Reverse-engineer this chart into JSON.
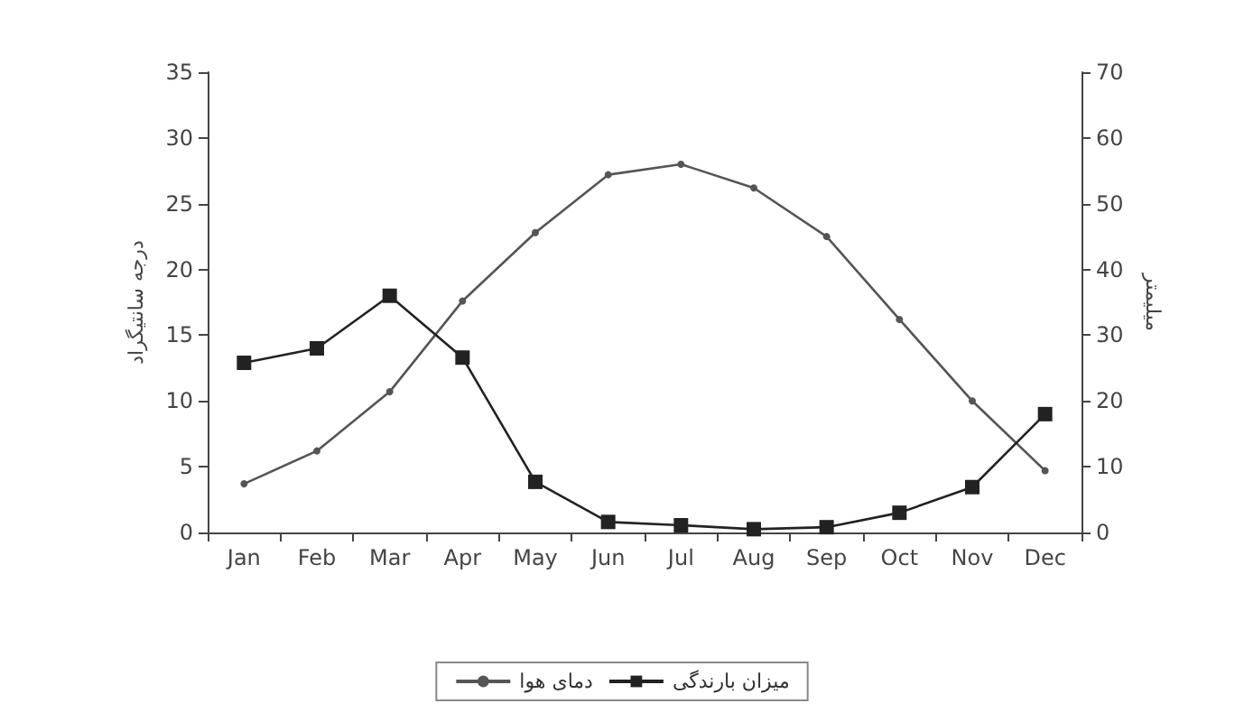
{
  "chart_data": {
    "type": "line",
    "ylabel": "درجه سانتیگراد",
    "y2label": "میلیمتر",
    "categories": [
      "Jan",
      "Feb",
      "Mar",
      "Apr",
      "May",
      "Jun",
      "Jul",
      "Aug",
      "Sep",
      "Oct",
      "Nov",
      "Dec"
    ],
    "series": [
      {
        "name": "دمای هوا",
        "color": "#555555",
        "marker": "circle",
        "values": [
          3.7,
          6.2,
          10.7,
          17.6,
          22.8,
          27.2,
          28,
          26.2,
          22.5,
          16.2,
          10,
          4.7
        ]
      },
      {
        "name": "میزان بارندگی",
        "color": "#222222",
        "marker": "square",
        "axis": "y2",
        "values": [
          25.8,
          28,
          36,
          26.6,
          7.7,
          1.6,
          1.1,
          0.5,
          0.8,
          3,
          6.9,
          18
        ]
      }
    ],
    "ylim": [
      0,
      35
    ],
    "yticks": [
      0,
      5,
      10,
      15,
      20,
      25,
      30,
      35
    ],
    "y2lim": [
      0,
      70
    ],
    "y2ticks": [
      0,
      10,
      20,
      30,
      40,
      50,
      60,
      70
    ],
    "grid": false,
    "legend": "bottom"
  }
}
